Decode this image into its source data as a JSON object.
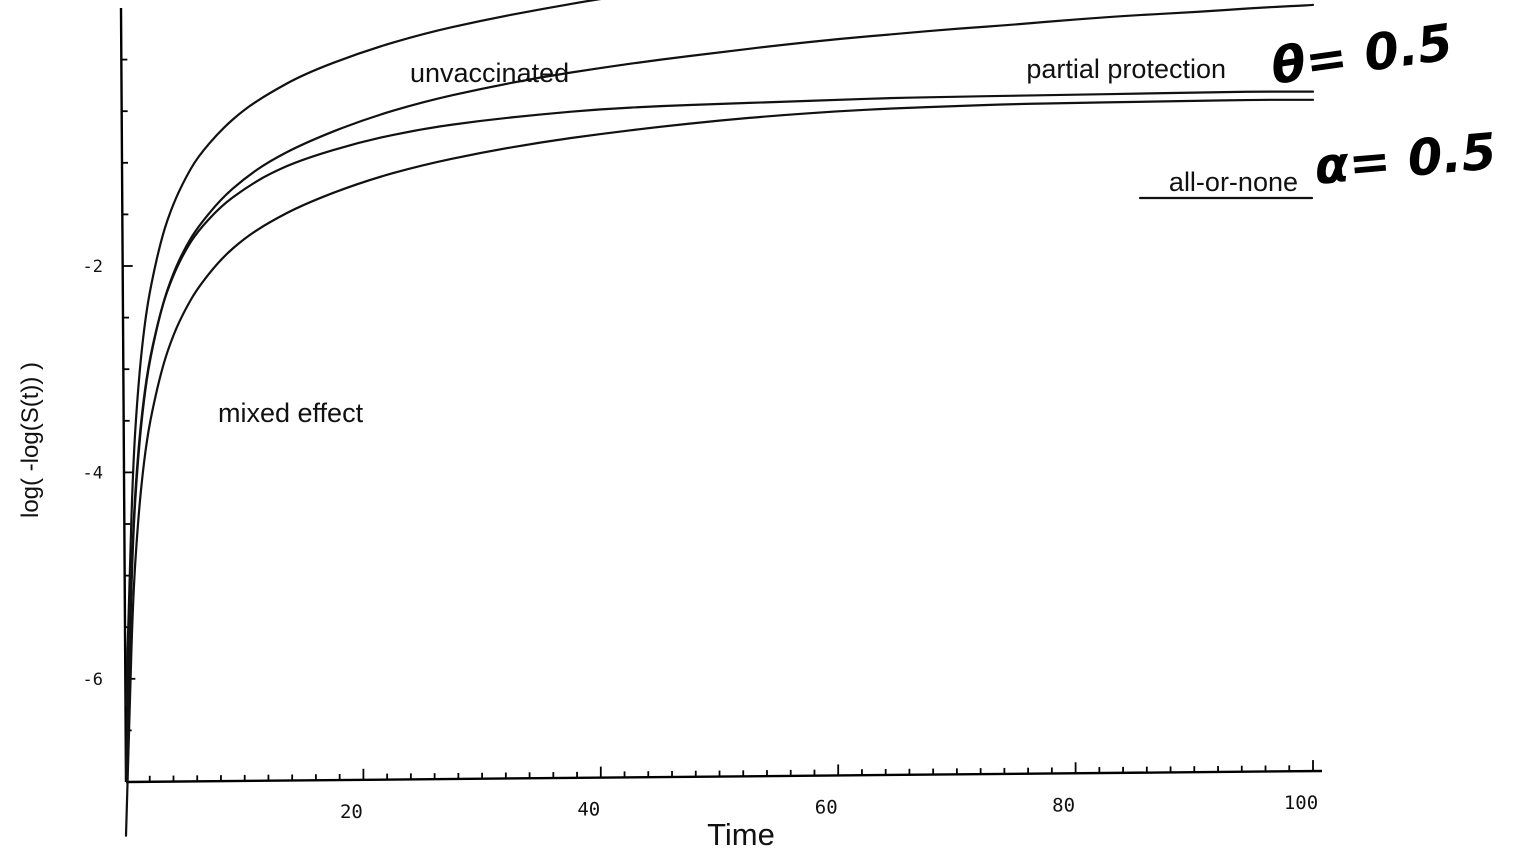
{
  "chart_data": {
    "type": "line",
    "title": "",
    "xlabel": "Time",
    "ylabel": "log( -log(S(t)) )",
    "xlim": [
      0,
      100
    ],
    "ylim": [
      -7,
      0.5
    ],
    "x_ticks": [
      20,
      40,
      60,
      80,
      100
    ],
    "y_ticks": [
      -2,
      -4,
      -6
    ],
    "x": [
      0.3,
      0.6,
      1,
      1.5,
      2,
      3,
      4,
      5,
      6,
      8,
      10,
      12,
      15,
      20,
      25,
      30,
      35,
      40,
      45,
      50,
      55,
      60,
      65,
      70,
      75,
      80,
      85,
      90,
      95,
      100
    ],
    "series": [
      {
        "name": "unvaccinated",
        "values": [
          -5.05,
          -3.92,
          -3.2,
          -2.62,
          -2.24,
          -1.72,
          -1.39,
          -1.15,
          -0.95,
          -0.68,
          -0.48,
          -0.33,
          -0.14,
          0.08,
          0.25,
          0.38,
          0.49,
          0.59,
          0.67,
          0.74,
          0.81,
          0.87,
          0.92,
          0.97,
          1.02,
          1.06,
          1.1,
          1.14,
          1.17,
          1.21
        ]
      },
      {
        "name": "partial protection",
        "values": [
          -5.75,
          -4.6,
          -3.87,
          -3.3,
          -2.91,
          -2.4,
          -2.06,
          -1.82,
          -1.63,
          -1.35,
          -1.15,
          -0.99,
          -0.81,
          -0.58,
          -0.41,
          -0.28,
          -0.17,
          -0.08,
          0.0,
          0.07,
          0.14,
          0.2,
          0.25,
          0.3,
          0.34,
          0.39,
          0.43,
          0.46,
          0.5,
          0.53
        ]
      },
      {
        "name": "all-or-none",
        "values": [
          -5.63,
          -4.53,
          -3.82,
          -3.27,
          -2.89,
          -2.4,
          -2.08,
          -1.85,
          -1.67,
          -1.42,
          -1.25,
          -1.11,
          -0.96,
          -0.79,
          -0.67,
          -0.59,
          -0.53,
          -0.48,
          -0.45,
          -0.43,
          -0.41,
          -0.39,
          -0.37,
          -0.36,
          -0.35,
          -0.34,
          -0.33,
          -0.32,
          -0.31,
          -0.31
        ]
      },
      {
        "name": "mixed effect",
        "values": [
          -6.32,
          -5.2,
          -4.48,
          -3.9,
          -3.51,
          -3.0,
          -2.66,
          -2.42,
          -2.22,
          -1.93,
          -1.73,
          -1.58,
          -1.4,
          -1.18,
          -1.02,
          -0.9,
          -0.8,
          -0.72,
          -0.65,
          -0.59,
          -0.54,
          -0.5,
          -0.47,
          -0.45,
          -0.43,
          -0.42,
          -0.41,
          -0.4,
          -0.39,
          -0.39
        ]
      }
    ],
    "legend": "inline labels",
    "grid": false,
    "annotations": [
      "θ= 0.5",
      "α= 0.5"
    ]
  }
}
